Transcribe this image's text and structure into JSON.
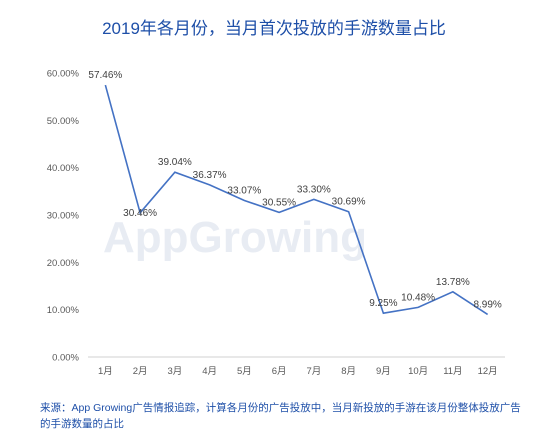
{
  "title": "2019年各月份，当月首次投放的手游数量占比",
  "watermark": "AppGrowing",
  "note": "来源：App Growing广告情报追踪，计算各月份的广告投放中，当月新投放的手游在该月份整体投放广告的手游数量的占比",
  "chart_data": {
    "type": "line",
    "title": "2019年各月份，当月首次投放的手游数量占比",
    "categories": [
      "1月",
      "2月",
      "3月",
      "4月",
      "5月",
      "6月",
      "7月",
      "8月",
      "9月",
      "10月",
      "11月",
      "12月"
    ],
    "series": [
      {
        "values": [
          57.46,
          30.46,
          39.04,
          36.37,
          33.07,
          30.55,
          33.3,
          30.69,
          9.25,
          10.48,
          13.78,
          8.99
        ],
        "labels": [
          "57.46%",
          "30.46%",
          "39.04%",
          "36.37%",
          "33.07%",
          "30.55%",
          "33.30%",
          "30.69%",
          "9.25%",
          "10.48%",
          "13.78%",
          "8.99%"
        ]
      }
    ],
    "yticks": [
      "0.00%",
      "10.00%",
      "20.00%",
      "30.00%",
      "40.00%",
      "50.00%",
      "60.00%"
    ],
    "ylim": [
      0,
      60
    ],
    "grid": false,
    "colors": {
      "line": "#4472c4",
      "axis": "#d0d0d0",
      "title": "#1e4fa8"
    }
  }
}
